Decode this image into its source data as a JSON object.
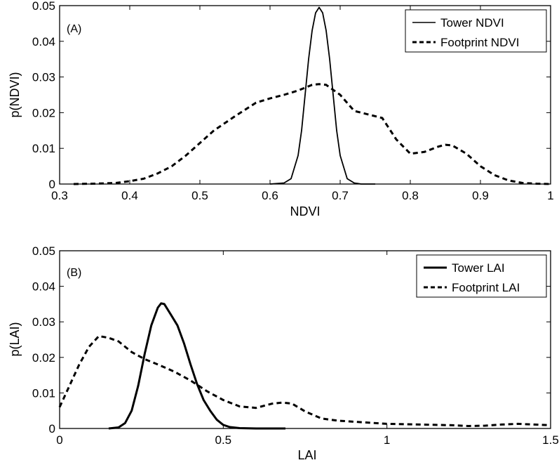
{
  "chart_data": [
    {
      "type": "line",
      "panel_label": "(A)",
      "xlabel": "NDVI",
      "ylabel": "p(NDVI)",
      "xlim": [
        0.3,
        1.0
      ],
      "ylim": [
        0,
        0.05
      ],
      "xticks": [
        0.3,
        0.4,
        0.5,
        0.6,
        0.7,
        0.8,
        0.9,
        1
      ],
      "xtick_labels": [
        "0.3",
        "0.4",
        "0.5",
        "0.6",
        "0.7",
        "0.8",
        "0.9",
        "1"
      ],
      "yticks": [
        0,
        0.01,
        0.02,
        0.03,
        0.04,
        0.05
      ],
      "ytick_labels": [
        "0",
        "0.01",
        "0.02",
        "0.03",
        "0.04",
        "0.05"
      ],
      "grid": false,
      "legend_position": "top-right",
      "series": [
        {
          "name": "Tower NDVI",
          "style": "solid",
          "x": [
            0.6,
            0.62,
            0.63,
            0.64,
            0.645,
            0.65,
            0.655,
            0.66,
            0.665,
            0.67,
            0.675,
            0.68,
            0.685,
            0.69,
            0.695,
            0.7,
            0.71,
            0.72,
            0.73,
            0.75
          ],
          "y": [
            0,
            0.0003,
            0.0015,
            0.008,
            0.015,
            0.025,
            0.035,
            0.043,
            0.048,
            0.0495,
            0.048,
            0.043,
            0.035,
            0.025,
            0.015,
            0.008,
            0.0015,
            0.0003,
            0,
            0
          ]
        },
        {
          "name": "Footprint NDVI",
          "style": "dashed",
          "x": [
            0.32,
            0.35,
            0.38,
            0.4,
            0.42,
            0.44,
            0.46,
            0.48,
            0.5,
            0.52,
            0.55,
            0.58,
            0.6,
            0.62,
            0.64,
            0.66,
            0.67,
            0.68,
            0.7,
            0.72,
            0.74,
            0.76,
            0.78,
            0.8,
            0.82,
            0.84,
            0.85,
            0.86,
            0.88,
            0.9,
            0.92,
            0.94,
            0.96,
            0.98,
            1.0
          ],
          "y": [
            0,
            0.0001,
            0.0003,
            0.0008,
            0.0015,
            0.003,
            0.005,
            0.008,
            0.0115,
            0.015,
            0.019,
            0.0228,
            0.024,
            0.025,
            0.0262,
            0.0278,
            0.028,
            0.0278,
            0.025,
            0.0205,
            0.0195,
            0.0185,
            0.0125,
            0.0085,
            0.009,
            0.0105,
            0.011,
            0.0108,
            0.0085,
            0.005,
            0.0025,
            0.001,
            0.0003,
            0.0001,
            0
          ]
        }
      ]
    },
    {
      "type": "line",
      "panel_label": "(B)",
      "xlabel": "LAI",
      "ylabel": "p(LAI)",
      "xlim": [
        0,
        1.5
      ],
      "ylim": [
        0,
        0.05
      ],
      "xticks": [
        0,
        0.5,
        1,
        1.5
      ],
      "xtick_labels": [
        "0",
        "0.5",
        "1",
        "1.5"
      ],
      "yticks": [
        0,
        0.01,
        0.02,
        0.03,
        0.04,
        0.05
      ],
      "ytick_labels": [
        "0",
        "0.01",
        "0.02",
        "0.03",
        "0.04",
        "0.05"
      ],
      "grid": false,
      "legend_position": "top-right",
      "series": [
        {
          "name": "Tower LAI",
          "style": "solid",
          "x": [
            0.15,
            0.18,
            0.2,
            0.22,
            0.24,
            0.26,
            0.28,
            0.3,
            0.31,
            0.32,
            0.34,
            0.36,
            0.38,
            0.4,
            0.42,
            0.44,
            0.46,
            0.48,
            0.5,
            0.52,
            0.55,
            0.6,
            0.69
          ],
          "y": [
            0,
            0.0003,
            0.0015,
            0.005,
            0.012,
            0.021,
            0.029,
            0.034,
            0.0352,
            0.035,
            0.032,
            0.029,
            0.024,
            0.018,
            0.0125,
            0.008,
            0.005,
            0.0025,
            0.001,
            0.0004,
            0.0001,
            0,
            0
          ]
        },
        {
          "name": "Footprint LAI",
          "style": "dashed",
          "x": [
            0,
            0.03,
            0.06,
            0.09,
            0.12,
            0.15,
            0.18,
            0.22,
            0.26,
            0.3,
            0.35,
            0.4,
            0.45,
            0.5,
            0.55,
            0.6,
            0.65,
            0.68,
            0.71,
            0.75,
            0.8,
            0.85,
            0.9,
            0.95,
            1.0,
            1.05,
            1.1,
            1.15,
            1.2,
            1.25,
            1.3,
            1.35,
            1.4,
            1.45,
            1.5
          ],
          "y": [
            0.006,
            0.012,
            0.018,
            0.023,
            0.026,
            0.0255,
            0.0245,
            0.0215,
            0.0195,
            0.018,
            0.016,
            0.0135,
            0.0105,
            0.008,
            0.0062,
            0.0058,
            0.007,
            0.0073,
            0.007,
            0.0048,
            0.0028,
            0.0022,
            0.0019,
            0.0016,
            0.0013,
            0.0012,
            0.0011,
            0.001,
            0.0009,
            0.0007,
            0.0008,
            0.0011,
            0.0013,
            0.0011,
            0.0009
          ]
        }
      ]
    }
  ]
}
